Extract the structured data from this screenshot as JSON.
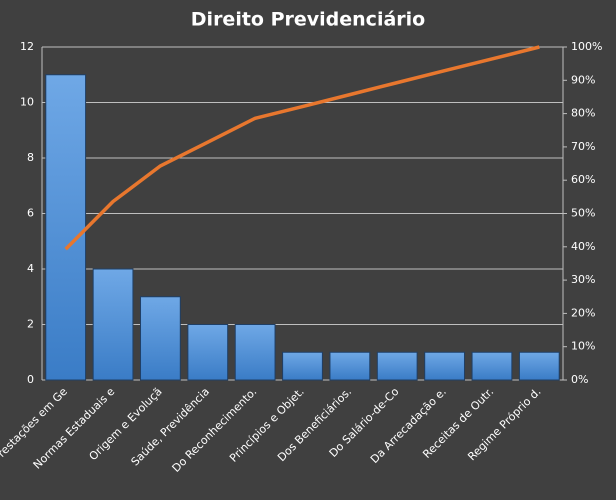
{
  "chart_data": {
    "type": "pareto",
    "title": "Direito  Previdenciário",
    "categories": [
      "Das Prestações em Ge",
      "Normas Estaduais e",
      "Origem e Evoluçã",
      "Saúde, Previdência",
      "Do Reconhecimento.",
      "Princípios e Objet.",
      "Dos Beneficiários.",
      "Do Salário-de-Co",
      "Da Arrecadação e.",
      "Receitas de Outr.",
      "Regime Próprio d."
    ],
    "series": [
      {
        "type": "bar",
        "color": "#4a90d9",
        "values": [
          11,
          4,
          3,
          2,
          2,
          1,
          1,
          1,
          1,
          1,
          1
        ]
      },
      {
        "type": "line",
        "color": "#e8772e",
        "axis": "y2",
        "values": [
          39.3,
          53.6,
          64.3,
          71.4,
          78.6,
          82.1,
          85.7,
          89.3,
          92.9,
          96.4,
          100
        ]
      }
    ],
    "ylim": [
      0,
      12
    ],
    "yticks": [
      0,
      2,
      4,
      6,
      8,
      10,
      12
    ],
    "y2lim": [
      0,
      100
    ],
    "y2ticks": [
      {
        "value": 0,
        "label": "0%"
      },
      {
        "value": 10,
        "label": "10%"
      },
      {
        "value": 20,
        "label": "20%"
      },
      {
        "value": 30,
        "label": "30%"
      },
      {
        "value": 40,
        "label": "40%"
      },
      {
        "value": 50,
        "label": "50%"
      },
      {
        "value": 60,
        "label": "60%"
      },
      {
        "value": 70,
        "label": "70%"
      },
      {
        "value": 80,
        "label": "80%"
      },
      {
        "value": 90,
        "label": "90%"
      },
      {
        "value": 100,
        "label": "100%"
      }
    ],
    "grid": true
  }
}
